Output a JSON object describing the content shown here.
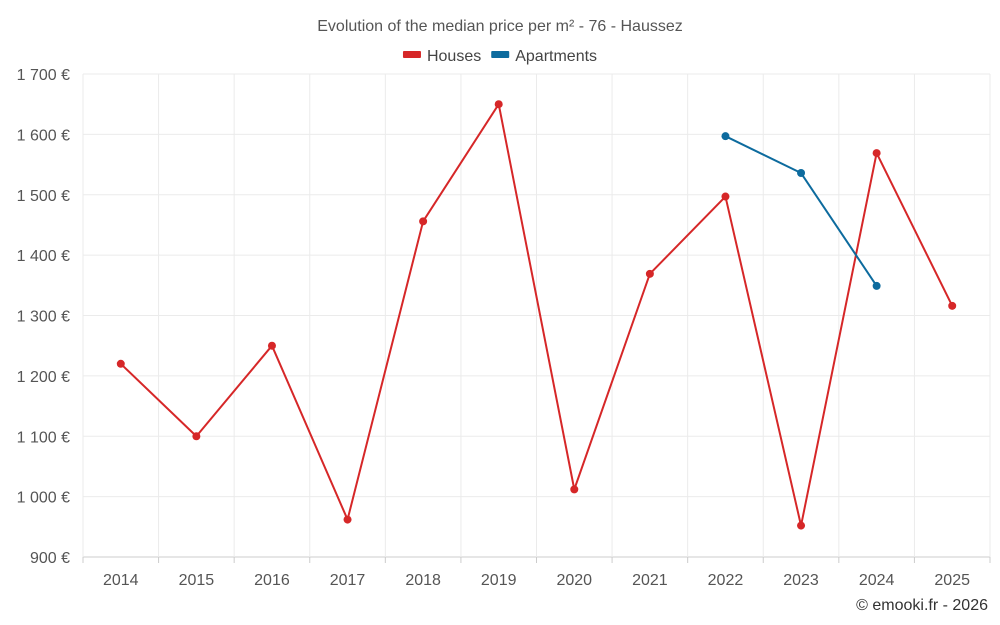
{
  "chart_data": {
    "type": "line",
    "title": "Evolution of the median price per m² - 76 - Haussez",
    "categories": [
      "2014",
      "2015",
      "2016",
      "2017",
      "2018",
      "2019",
      "2020",
      "2021",
      "2022",
      "2023",
      "2024",
      "2025"
    ],
    "ylim": [
      900,
      1700
    ],
    "yticks": [
      900,
      1000,
      1100,
      1200,
      1300,
      1400,
      1500,
      1600,
      1700
    ],
    "ytick_labels": [
      "900 €",
      "1 000 €",
      "1 100 €",
      "1 200 €",
      "1 300 €",
      "1 400 €",
      "1 500 €",
      "1 600 €",
      "1 700 €"
    ],
    "grid": true,
    "legend_position": "top-center",
    "series": [
      {
        "name": "Houses",
        "color": "#d62728",
        "values": [
          1220,
          1100,
          1250,
          962,
          1456,
          1650,
          1012,
          1369,
          1497,
          952,
          1569,
          1316
        ]
      },
      {
        "name": "Apartments",
        "color": "#0d6b9e",
        "values": [
          null,
          null,
          null,
          null,
          null,
          null,
          null,
          null,
          1597,
          1536,
          1349,
          null
        ]
      }
    ],
    "credit": "© emooki.fr - 2026"
  }
}
